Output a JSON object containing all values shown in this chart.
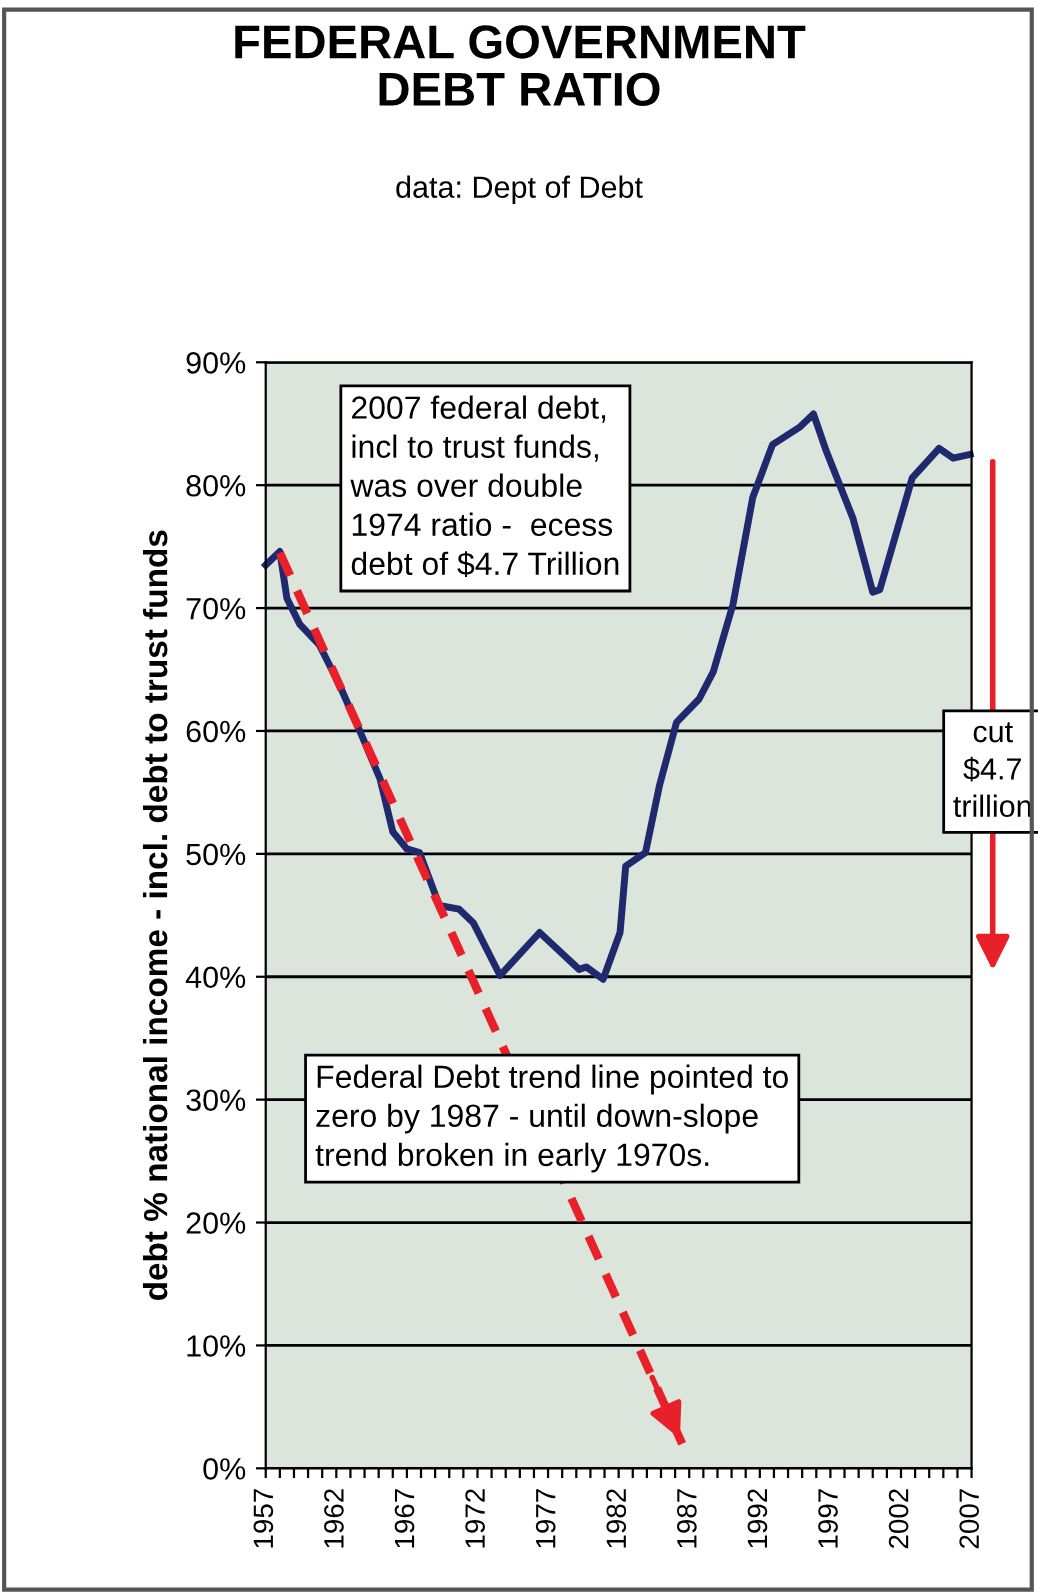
{
  "chart_data": {
    "type": "line",
    "title": "FEDERAL GOVERNMENT\nDEBT RATIO",
    "subtitle": "data: Dept of Debt",
    "ylabel": "debt % national income - incl. debt to trust funds",
    "xlim": [
      1957,
      2007
    ],
    "ylim": [
      0,
      90
    ],
    "xticks": [
      1957,
      {
        "value": 1958,
        "label": null
      },
      {
        "value": 1959,
        "label": null
      },
      {
        "value": 1960,
        "label": null
      },
      {
        "value": 1961,
        "label": null
      },
      1962,
      {
        "value": 1963,
        "label": null
      },
      {
        "value": 1964,
        "label": null
      },
      {
        "value": 1965,
        "label": null
      },
      {
        "value": 1966,
        "label": null
      },
      1967,
      {
        "value": 1968,
        "label": null
      },
      {
        "value": 1969,
        "label": null
      },
      {
        "value": 1970,
        "label": null
      },
      {
        "value": 1971,
        "label": null
      },
      1972,
      {
        "value": 1973,
        "label": null
      },
      {
        "value": 1974,
        "label": null
      },
      {
        "value": 1975,
        "label": null
      },
      {
        "value": 1976,
        "label": null
      },
      1977,
      {
        "value": 1978,
        "label": null
      },
      {
        "value": 1979,
        "label": null
      },
      {
        "value": 1980,
        "label": null
      },
      {
        "value": 1981,
        "label": null
      },
      1982,
      {
        "value": 1983,
        "label": null
      },
      {
        "value": 1984,
        "label": null
      },
      {
        "value": 1985,
        "label": null
      },
      {
        "value": 1986,
        "label": null
      },
      1987,
      {
        "value": 1988,
        "label": null
      },
      {
        "value": 1989,
        "label": null
      },
      {
        "value": 1990,
        "label": null
      },
      {
        "value": 1991,
        "label": null
      },
      1992,
      {
        "value": 1993,
        "label": null
      },
      {
        "value": 1994,
        "label": null
      },
      {
        "value": 1995,
        "label": null
      },
      {
        "value": 1996,
        "label": null
      },
      1997,
      {
        "value": 1998,
        "label": null
      },
      {
        "value": 1999,
        "label": null
      },
      {
        "value": 2000,
        "label": null
      },
      {
        "value": 2001,
        "label": null
      },
      2002,
      {
        "value": 2003,
        "label": null
      },
      {
        "value": 2004,
        "label": null
      },
      {
        "value": 2005,
        "label": null
      },
      {
        "value": 2006,
        "label": null
      },
      2007
    ],
    "yticks": [
      {
        "value": 0,
        "label": "0%"
      },
      {
        "value": 10,
        "label": "10%"
      },
      {
        "value": 20,
        "label": "20%"
      },
      {
        "value": 30,
        "label": "30%"
      },
      {
        "value": 40,
        "label": "40%"
      },
      {
        "value": 50,
        "label": "50%"
      },
      {
        "value": 60,
        "label": "60%"
      },
      {
        "value": 70,
        "label": "70%"
      },
      {
        "value": 80,
        "label": "80%"
      },
      {
        "value": 90,
        "label": "90%"
      }
    ],
    "grid": "y",
    "legend": false,
    "marker": "none",
    "series": [
      {
        "color": "#1f2a6e",
        "line_style": "solid",
        "x": [
          1957,
          1958,
          1958.5,
          1959.4,
          1960.8,
          1962.2,
          1963.7,
          1965.1,
          1966,
          1967,
          1967.9,
          1969.3,
          1970.7,
          1971.7,
          1973.6,
          1976.4,
          1979.2,
          1979.7,
          1980.9,
          1982.1,
          1982.5,
          1983.9,
          1984.9,
          1986.1,
          1987.7,
          1988.7,
          1990.1,
          1991.5,
          1992.9,
          1994.8,
          1995.8,
          1996.7,
          1998.6,
          2000,
          2000.5,
          2002.8,
          2004.7,
          2005.7,
          2006.9
        ],
        "values": [
          73.5,
          74.6,
          70.8,
          68.7,
          67,
          63.8,
          59.9,
          56.1,
          51.8,
          50.4,
          50.1,
          45.8,
          45.5,
          44.4,
          40.1,
          43.6,
          40.6,
          40.8,
          39.8,
          43.6,
          49,
          50.1,
          55.6,
          60.7,
          62.6,
          64.8,
          70.3,
          79,
          83.3,
          84.7,
          85.8,
          82.8,
          77.3,
          71.3,
          71.5,
          80.6,
          83,
          82.2,
          82.5
        ]
      },
      {
        "color": "#e8202a",
        "line_style": "dashed",
        "x": [
          1958,
          1986.5
        ],
        "values": [
          74.5,
          2
        ]
      }
    ],
    "annotations": [
      "2007 federal debt,\nincl to trust funds,\nwas over double\n1974 ratio -  ecess\ndebt of $4.7 Trillion",
      "cut\n$4.7\ntrillion",
      "Federal Debt trend line pointed to\nzero by 1987 - until down-slope\ntrend broken in early 1970s."
    ]
  }
}
